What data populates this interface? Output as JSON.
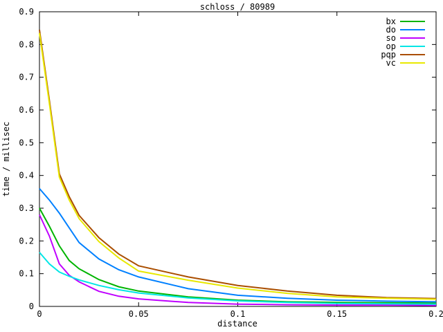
{
  "chart_data": {
    "type": "line",
    "title": "schloss / 80989",
    "xlabel": "distance",
    "ylabel": "time / millisec",
    "xlim": [
      0,
      0.2
    ],
    "ylim": [
      0,
      0.9
    ],
    "grid": false,
    "legend_position": "top-right-inside",
    "background_color": "#ffffff",
    "frame_color": "#000000",
    "x_ticks": {
      "values": [
        0,
        0.05,
        0.1,
        0.15,
        0.2
      ],
      "labels": [
        "0",
        "0.05",
        "0.1",
        "0.15",
        "0.2"
      ]
    },
    "y_ticks": {
      "values": [
        0,
        0.1,
        0.2,
        0.3,
        0.4,
        0.5,
        0.6,
        0.7,
        0.8,
        0.9
      ],
      "labels": [
        "0",
        "0.1",
        "0.2",
        "0.3",
        "0.4",
        "0.5",
        "0.6",
        "0.7",
        "0.8",
        "0.9"
      ]
    },
    "x": [
      0,
      0.005,
      0.01,
      0.015,
      0.02,
      0.03,
      0.04,
      0.05,
      0.075,
      0.1,
      0.125,
      0.15,
      0.175,
      0.2
    ],
    "series": [
      {
        "name": "bx",
        "color": "#00b400",
        "values": [
          0.3,
          0.245,
          0.185,
          0.14,
          0.115,
          0.082,
          0.06,
          0.047,
          0.029,
          0.019,
          0.014,
          0.012,
          0.011,
          0.01
        ]
      },
      {
        "name": "do",
        "color": "#0080ff",
        "values": [
          0.36,
          0.325,
          0.285,
          0.24,
          0.195,
          0.145,
          0.112,
          0.09,
          0.054,
          0.034,
          0.025,
          0.019,
          0.016,
          0.014
        ]
      },
      {
        "name": "so",
        "color": "#bf00ff",
        "values": [
          0.28,
          0.215,
          0.13,
          0.095,
          0.075,
          0.046,
          0.031,
          0.023,
          0.012,
          0.007,
          0.005,
          0.004,
          0.004,
          0.003
        ]
      },
      {
        "name": "op",
        "color": "#00e6e6",
        "values": [
          0.165,
          0.13,
          0.105,
          0.092,
          0.081,
          0.064,
          0.051,
          0.041,
          0.026,
          0.017,
          0.012,
          0.009,
          0.008,
          0.007
        ]
      },
      {
        "name": "pqp",
        "color": "#aa4e00",
        "values": [
          0.845,
          0.63,
          0.405,
          0.335,
          0.278,
          0.21,
          0.16,
          0.124,
          0.09,
          0.064,
          0.047,
          0.034,
          0.027,
          0.024
        ]
      },
      {
        "name": "vc",
        "color": "#e8e800",
        "values": [
          0.835,
          0.62,
          0.395,
          0.325,
          0.268,
          0.198,
          0.148,
          0.108,
          0.08,
          0.056,
          0.04,
          0.029,
          0.025,
          0.022
        ]
      }
    ]
  }
}
